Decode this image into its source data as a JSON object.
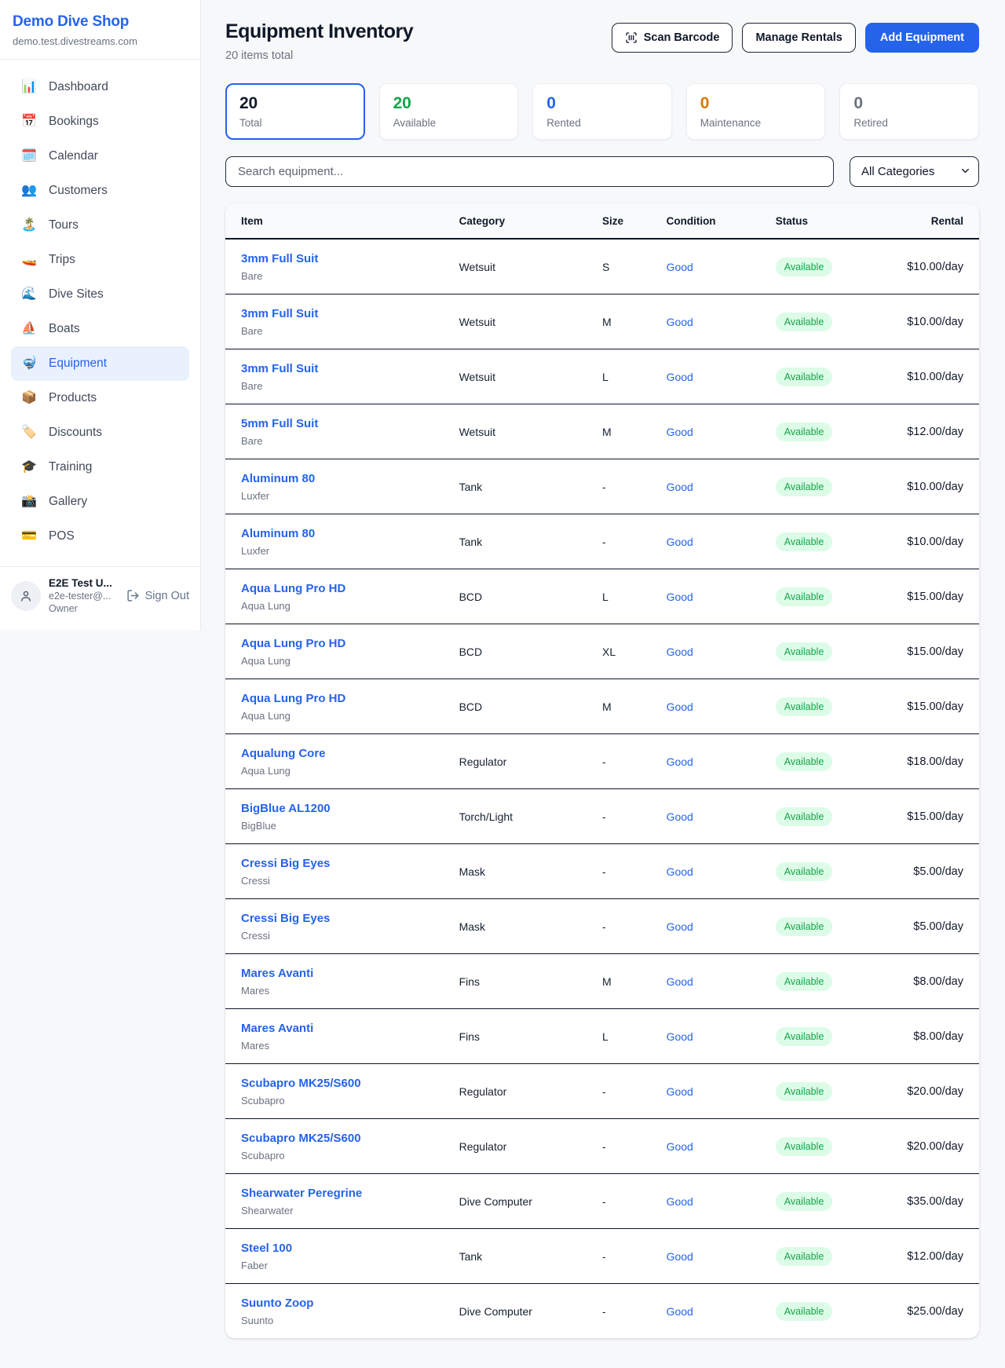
{
  "app": {
    "name": "Demo Dive Shop",
    "domain": "demo.test.divestreams.com"
  },
  "colors": {
    "accent_blue": "#2563eb",
    "available_green": "#16a34a",
    "available_pill_bg": "#dcfce7",
    "rented_blue": "#2563eb",
    "maintenance_orange": "#d97706",
    "retired_gray": "#6b7280",
    "total_dark": "#101828"
  },
  "sidebar": {
    "items": [
      {
        "label": "Dashboard",
        "icon": "📊",
        "icon_name": "dashboard-icon",
        "active": false
      },
      {
        "label": "Bookings",
        "icon": "📅",
        "icon_name": "bookings-icon",
        "active": false
      },
      {
        "label": "Calendar",
        "icon": "🗓️",
        "icon_name": "calendar-icon",
        "active": false
      },
      {
        "label": "Customers",
        "icon": "👥",
        "icon_name": "customers-icon",
        "active": false
      },
      {
        "label": "Tours",
        "icon": "🏝️",
        "icon_name": "tours-icon",
        "active": false
      },
      {
        "label": "Trips",
        "icon": "🚤",
        "icon_name": "trips-icon",
        "active": false
      },
      {
        "label": "Dive Sites",
        "icon": "🌊",
        "icon_name": "dive-sites-icon",
        "active": false
      },
      {
        "label": "Boats",
        "icon": "⛵",
        "icon_name": "boats-icon",
        "active": false
      },
      {
        "label": "Equipment",
        "icon": "🤿",
        "icon_name": "equipment-icon",
        "active": true
      },
      {
        "label": "Products",
        "icon": "📦",
        "icon_name": "products-icon",
        "active": false
      },
      {
        "label": "Discounts",
        "icon": "🏷️",
        "icon_name": "discounts-icon",
        "active": false
      },
      {
        "label": "Training",
        "icon": "🎓",
        "icon_name": "training-icon",
        "active": false
      },
      {
        "label": "Gallery",
        "icon": "📸",
        "icon_name": "gallery-icon",
        "active": false
      },
      {
        "label": "POS",
        "icon": "💳",
        "icon_name": "pos-icon",
        "active": false
      }
    ],
    "user": {
      "name": "E2E Test U...",
      "email": "e2e-tester@...",
      "role": "Owner",
      "signout_label": "Sign Out"
    }
  },
  "header": {
    "title": "Equipment Inventory",
    "subtitle": "20 items total",
    "scan_barcode_label": "Scan Barcode",
    "manage_rentals_label": "Manage Rentals",
    "add_equipment_label": "Add Equipment"
  },
  "stats": [
    {
      "value": "20",
      "label": "Total",
      "color": "#101828",
      "active": true
    },
    {
      "value": "20",
      "label": "Available",
      "color": "#16a34a",
      "active": false
    },
    {
      "value": "0",
      "label": "Rented",
      "color": "#2563eb",
      "active": false
    },
    {
      "value": "0",
      "label": "Maintenance",
      "color": "#d97706",
      "active": false
    },
    {
      "value": "0",
      "label": "Retired",
      "color": "#6b7280",
      "active": false
    }
  ],
  "filters": {
    "search_placeholder": "Search equipment...",
    "category_selected": "All Categories"
  },
  "table": {
    "columns": [
      "Item",
      "Category",
      "Size",
      "Condition",
      "Status",
      "Rental"
    ],
    "rows": [
      {
        "name": "3mm Full Suit",
        "brand": "Bare",
        "category": "Wetsuit",
        "size": "S",
        "condition": "Good",
        "status": "Available",
        "rental": "$10.00/day"
      },
      {
        "name": "3mm Full Suit",
        "brand": "Bare",
        "category": "Wetsuit",
        "size": "M",
        "condition": "Good",
        "status": "Available",
        "rental": "$10.00/day"
      },
      {
        "name": "3mm Full Suit",
        "brand": "Bare",
        "category": "Wetsuit",
        "size": "L",
        "condition": "Good",
        "status": "Available",
        "rental": "$10.00/day"
      },
      {
        "name": "5mm Full Suit",
        "brand": "Bare",
        "category": "Wetsuit",
        "size": "M",
        "condition": "Good",
        "status": "Available",
        "rental": "$12.00/day"
      },
      {
        "name": "Aluminum 80",
        "brand": "Luxfer",
        "category": "Tank",
        "size": "-",
        "condition": "Good",
        "status": "Available",
        "rental": "$10.00/day"
      },
      {
        "name": "Aluminum 80",
        "brand": "Luxfer",
        "category": "Tank",
        "size": "-",
        "condition": "Good",
        "status": "Available",
        "rental": "$10.00/day"
      },
      {
        "name": "Aqua Lung Pro HD",
        "brand": "Aqua Lung",
        "category": "BCD",
        "size": "L",
        "condition": "Good",
        "status": "Available",
        "rental": "$15.00/day"
      },
      {
        "name": "Aqua Lung Pro HD",
        "brand": "Aqua Lung",
        "category": "BCD",
        "size": "XL",
        "condition": "Good",
        "status": "Available",
        "rental": "$15.00/day"
      },
      {
        "name": "Aqua Lung Pro HD",
        "brand": "Aqua Lung",
        "category": "BCD",
        "size": "M",
        "condition": "Good",
        "status": "Available",
        "rental": "$15.00/day"
      },
      {
        "name": "Aqualung Core",
        "brand": "Aqua Lung",
        "category": "Regulator",
        "size": "-",
        "condition": "Good",
        "status": "Available",
        "rental": "$18.00/day"
      },
      {
        "name": "BigBlue AL1200",
        "brand": "BigBlue",
        "category": "Torch/Light",
        "size": "-",
        "condition": "Good",
        "status": "Available",
        "rental": "$15.00/day"
      },
      {
        "name": "Cressi Big Eyes",
        "brand": "Cressi",
        "category": "Mask",
        "size": "-",
        "condition": "Good",
        "status": "Available",
        "rental": "$5.00/day"
      },
      {
        "name": "Cressi Big Eyes",
        "brand": "Cressi",
        "category": "Mask",
        "size": "-",
        "condition": "Good",
        "status": "Available",
        "rental": "$5.00/day"
      },
      {
        "name": "Mares Avanti",
        "brand": "Mares",
        "category": "Fins",
        "size": "M",
        "condition": "Good",
        "status": "Available",
        "rental": "$8.00/day"
      },
      {
        "name": "Mares Avanti",
        "brand": "Mares",
        "category": "Fins",
        "size": "L",
        "condition": "Good",
        "status": "Available",
        "rental": "$8.00/day"
      },
      {
        "name": "Scubapro MK25/S600",
        "brand": "Scubapro",
        "category": "Regulator",
        "size": "-",
        "condition": "Good",
        "status": "Available",
        "rental": "$20.00/day"
      },
      {
        "name": "Scubapro MK25/S600",
        "brand": "Scubapro",
        "category": "Regulator",
        "size": "-",
        "condition": "Good",
        "status": "Available",
        "rental": "$20.00/day"
      },
      {
        "name": "Shearwater Peregrine",
        "brand": "Shearwater",
        "category": "Dive Computer",
        "size": "-",
        "condition": "Good",
        "status": "Available",
        "rental": "$35.00/day"
      },
      {
        "name": "Steel 100",
        "brand": "Faber",
        "category": "Tank",
        "size": "-",
        "condition": "Good",
        "status": "Available",
        "rental": "$12.00/day"
      },
      {
        "name": "Suunto Zoop",
        "brand": "Suunto",
        "category": "Dive Computer",
        "size": "-",
        "condition": "Good",
        "status": "Available",
        "rental": "$25.00/day"
      }
    ]
  }
}
